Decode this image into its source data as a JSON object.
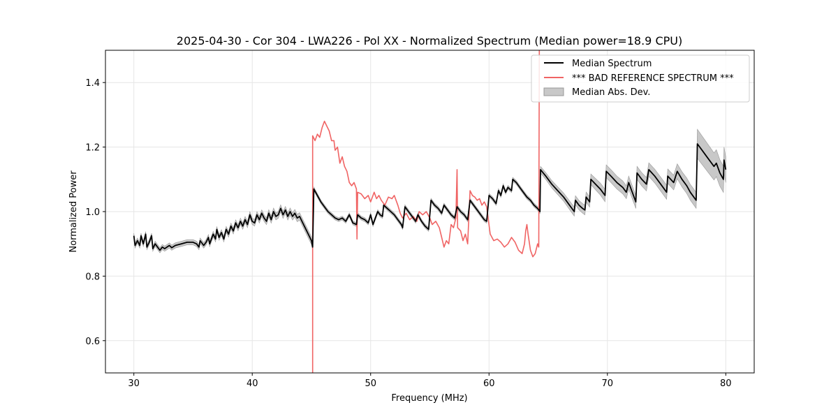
{
  "chart_data": {
    "type": "line",
    "title": "2025-04-30 - Cor 304 - LWA226 - Pol XX - Normalized Spectrum (Median power=18.9 CPU)",
    "xlabel": "Frequency (MHz)",
    "ylabel": "Normalized Power",
    "xlim": [
      27.6,
      82.4
    ],
    "ylim": [
      0.5,
      1.5
    ],
    "xticks": [
      30,
      40,
      50,
      60,
      70,
      80
    ],
    "yticks": [
      0.6,
      0.8,
      1.0,
      1.2,
      1.4
    ],
    "grid": true,
    "legend_position": "top-right",
    "series": [
      {
        "name": "Median Spectrum",
        "color": "#000000",
        "points": [
          [
            30.0,
            0.925
          ],
          [
            30.1,
            0.895
          ],
          [
            30.3,
            0.91
          ],
          [
            30.5,
            0.895
          ],
          [
            30.6,
            0.925
          ],
          [
            30.8,
            0.9
          ],
          [
            31.0,
            0.93
          ],
          [
            31.1,
            0.89
          ],
          [
            31.3,
            0.905
          ],
          [
            31.5,
            0.925
          ],
          [
            31.6,
            0.885
          ],
          [
            31.8,
            0.9
          ],
          [
            32.0,
            0.89
          ],
          [
            32.2,
            0.88
          ],
          [
            32.4,
            0.89
          ],
          [
            32.6,
            0.885
          ],
          [
            32.8,
            0.89
          ],
          [
            33.0,
            0.895
          ],
          [
            33.2,
            0.888
          ],
          [
            33.5,
            0.895
          ],
          [
            34.0,
            0.9
          ],
          [
            34.5,
            0.905
          ],
          [
            35.0,
            0.905
          ],
          [
            35.3,
            0.9
          ],
          [
            35.5,
            0.89
          ],
          [
            35.6,
            0.91
          ],
          [
            35.9,
            0.895
          ],
          [
            36.1,
            0.905
          ],
          [
            36.3,
            0.92
          ],
          [
            36.4,
            0.9
          ],
          [
            36.7,
            0.93
          ],
          [
            36.9,
            0.915
          ],
          [
            37.0,
            0.945
          ],
          [
            37.2,
            0.92
          ],
          [
            37.4,
            0.935
          ],
          [
            37.6,
            0.915
          ],
          [
            37.8,
            0.945
          ],
          [
            38.0,
            0.93
          ],
          [
            38.2,
            0.955
          ],
          [
            38.4,
            0.94
          ],
          [
            38.6,
            0.965
          ],
          [
            38.8,
            0.95
          ],
          [
            39.0,
            0.97
          ],
          [
            39.2,
            0.955
          ],
          [
            39.4,
            0.975
          ],
          [
            39.6,
            0.96
          ],
          [
            39.8,
            0.99
          ],
          [
            40.0,
            0.97
          ],
          [
            40.2,
            0.965
          ],
          [
            40.4,
            0.99
          ],
          [
            40.6,
            0.975
          ],
          [
            40.8,
            0.995
          ],
          [
            41.0,
            0.98
          ],
          [
            41.2,
            0.97
          ],
          [
            41.4,
            0.995
          ],
          [
            41.6,
            0.975
          ],
          [
            41.8,
            1.0
          ],
          [
            42.0,
            0.985
          ],
          [
            42.2,
            0.99
          ],
          [
            42.4,
            1.01
          ],
          [
            42.6,
            0.99
          ],
          [
            42.8,
            1.005
          ],
          [
            43.0,
            0.985
          ],
          [
            43.2,
            1.0
          ],
          [
            43.4,
            0.985
          ],
          [
            43.6,
            0.995
          ],
          [
            43.8,
            0.98
          ],
          [
            44.0,
            0.985
          ],
          [
            44.2,
            0.97
          ],
          [
            44.4,
            0.955
          ],
          [
            44.6,
            0.94
          ],
          [
            44.8,
            0.925
          ],
          [
            45.0,
            0.91
          ],
          [
            45.1,
            0.89
          ],
          [
            45.2,
            1.07
          ],
          [
            45.5,
            1.05
          ],
          [
            45.8,
            1.03
          ],
          [
            46.1,
            1.015
          ],
          [
            46.4,
            1.0
          ],
          [
            46.7,
            0.99
          ],
          [
            47.0,
            0.98
          ],
          [
            47.3,
            0.975
          ],
          [
            47.6,
            0.98
          ],
          [
            47.9,
            0.97
          ],
          [
            48.2,
            0.99
          ],
          [
            48.5,
            0.965
          ],
          [
            48.8,
            0.96
          ],
          [
            48.9,
            0.99
          ],
          [
            49.2,
            0.98
          ],
          [
            49.5,
            0.975
          ],
          [
            49.8,
            0.965
          ],
          [
            50.0,
            0.99
          ],
          [
            50.2,
            0.96
          ],
          [
            50.4,
            0.98
          ],
          [
            50.6,
            1.0
          ],
          [
            50.8,
            0.99
          ],
          [
            51.0,
            0.985
          ],
          [
            51.1,
            1.02
          ],
          [
            51.4,
            1.01
          ],
          [
            51.7,
            1.0
          ],
          [
            52.0,
            0.99
          ],
          [
            52.3,
            0.975
          ],
          [
            52.6,
            0.96
          ],
          [
            52.7,
            0.95
          ],
          [
            52.9,
            1.015
          ],
          [
            53.2,
            1.0
          ],
          [
            53.5,
            0.985
          ],
          [
            53.8,
            0.97
          ],
          [
            54.0,
            0.99
          ],
          [
            54.3,
            0.97
          ],
          [
            54.6,
            0.955
          ],
          [
            54.9,
            0.945
          ],
          [
            55.1,
            1.035
          ],
          [
            55.4,
            1.02
          ],
          [
            55.7,
            1.01
          ],
          [
            56.0,
            0.995
          ],
          [
            56.2,
            1.02
          ],
          [
            56.5,
            1.005
          ],
          [
            56.8,
            0.99
          ],
          [
            57.1,
            0.98
          ],
          [
            57.3,
            1.015
          ],
          [
            57.6,
            1.0
          ],
          [
            57.9,
            0.99
          ],
          [
            58.2,
            0.975
          ],
          [
            58.4,
            1.035
          ],
          [
            58.7,
            1.02
          ],
          [
            59.0,
            1.005
          ],
          [
            59.3,
            0.99
          ],
          [
            59.6,
            0.975
          ],
          [
            59.8,
            0.97
          ],
          [
            60.0,
            1.05
          ],
          [
            60.3,
            1.04
          ],
          [
            60.6,
            1.025
          ],
          [
            60.8,
            1.065
          ],
          [
            61.0,
            1.05
          ],
          [
            61.2,
            1.08
          ],
          [
            61.4,
            1.06
          ],
          [
            61.6,
            1.075
          ],
          [
            61.9,
            1.065
          ],
          [
            62.0,
            1.1
          ],
          [
            62.3,
            1.09
          ],
          [
            62.6,
            1.075
          ],
          [
            62.9,
            1.06
          ],
          [
            63.2,
            1.045
          ],
          [
            63.5,
            1.035
          ],
          [
            63.8,
            1.02
          ],
          [
            64.1,
            1.01
          ],
          [
            64.3,
            1.0
          ],
          [
            64.35,
            1.13
          ],
          [
            64.8,
            1.11
          ],
          [
            65.3,
            1.085
          ],
          [
            65.8,
            1.065
          ],
          [
            66.3,
            1.045
          ],
          [
            66.8,
            1.02
          ],
          [
            67.0,
            1.01
          ],
          [
            67.2,
            1.0
          ],
          [
            67.3,
            1.035
          ],
          [
            67.6,
            1.02
          ],
          [
            67.9,
            1.01
          ],
          [
            68.1,
            1.005
          ],
          [
            68.2,
            1.045
          ],
          [
            68.5,
            1.03
          ],
          [
            68.6,
            1.1
          ],
          [
            69.0,
            1.085
          ],
          [
            69.4,
            1.07
          ],
          [
            69.8,
            1.05
          ],
          [
            69.9,
            1.125
          ],
          [
            70.3,
            1.11
          ],
          [
            70.8,
            1.09
          ],
          [
            71.3,
            1.075
          ],
          [
            71.6,
            1.06
          ],
          [
            71.8,
            1.09
          ],
          [
            72.1,
            1.06
          ],
          [
            72.4,
            1.03
          ],
          [
            72.5,
            1.12
          ],
          [
            72.9,
            1.1
          ],
          [
            73.3,
            1.085
          ],
          [
            73.5,
            1.13
          ],
          [
            74.0,
            1.11
          ],
          [
            74.5,
            1.085
          ],
          [
            75.0,
            1.06
          ],
          [
            75.1,
            1.11
          ],
          [
            75.6,
            1.09
          ],
          [
            75.9,
            1.125
          ],
          [
            76.3,
            1.1
          ],
          [
            76.7,
            1.08
          ],
          [
            77.0,
            1.06
          ],
          [
            77.3,
            1.045
          ],
          [
            77.5,
            1.035
          ],
          [
            77.6,
            1.21
          ],
          [
            78.0,
            1.19
          ],
          [
            78.5,
            1.165
          ],
          [
            78.8,
            1.15
          ],
          [
            79.0,
            1.14
          ],
          [
            79.2,
            1.15
          ],
          [
            79.5,
            1.12
          ],
          [
            79.8,
            1.1
          ],
          [
            79.85,
            1.16
          ],
          [
            80.0,
            1.13
          ]
        ]
      },
      {
        "name": "*** BAD REFERENCE SPECTRUM ***",
        "color": "#f06464",
        "points": [
          [
            45.1,
            0.5
          ],
          [
            45.1,
            1.235
          ],
          [
            45.3,
            1.22
          ],
          [
            45.5,
            1.24
          ],
          [
            45.7,
            1.23
          ],
          [
            45.9,
            1.26
          ],
          [
            46.1,
            1.28
          ],
          [
            46.3,
            1.265
          ],
          [
            46.5,
            1.25
          ],
          [
            46.7,
            1.22
          ],
          [
            46.9,
            1.22
          ],
          [
            47.0,
            1.19
          ],
          [
            47.2,
            1.2
          ],
          [
            47.4,
            1.15
          ],
          [
            47.6,
            1.17
          ],
          [
            47.8,
            1.14
          ],
          [
            48.0,
            1.125
          ],
          [
            48.2,
            1.09
          ],
          [
            48.4,
            1.08
          ],
          [
            48.6,
            1.09
          ],
          [
            48.8,
            1.07
          ],
          [
            48.85,
            0.915
          ],
          [
            48.9,
            1.06
          ],
          [
            49.2,
            1.055
          ],
          [
            49.5,
            1.04
          ],
          [
            49.8,
            1.05
          ],
          [
            50.0,
            1.03
          ],
          [
            50.3,
            1.06
          ],
          [
            50.5,
            1.04
          ],
          [
            50.7,
            1.05
          ],
          [
            50.9,
            1.035
          ],
          [
            51.2,
            1.02
          ],
          [
            51.5,
            1.045
          ],
          [
            51.8,
            1.04
          ],
          [
            52.0,
            1.05
          ],
          [
            52.3,
            1.02
          ],
          [
            52.5,
            0.995
          ],
          [
            52.7,
            0.98
          ],
          [
            53.0,
            0.995
          ],
          [
            53.3,
            0.975
          ],
          [
            53.6,
            0.985
          ],
          [
            53.9,
            0.97
          ],
          [
            54.1,
            1.0
          ],
          [
            54.4,
            0.99
          ],
          [
            54.7,
            1.0
          ],
          [
            55.0,
            0.98
          ],
          [
            55.2,
            0.96
          ],
          [
            55.5,
            0.97
          ],
          [
            55.8,
            0.95
          ],
          [
            56.0,
            0.92
          ],
          [
            56.2,
            0.89
          ],
          [
            56.4,
            0.91
          ],
          [
            56.6,
            0.9
          ],
          [
            56.8,
            0.96
          ],
          [
            57.0,
            0.95
          ],
          [
            57.2,
            0.98
          ],
          [
            57.3,
            1.13
          ],
          [
            57.35,
            0.95
          ],
          [
            57.6,
            0.94
          ],
          [
            57.8,
            0.91
          ],
          [
            58.0,
            0.93
          ],
          [
            58.2,
            0.9
          ],
          [
            58.4,
            1.065
          ],
          [
            58.6,
            1.05
          ],
          [
            58.8,
            1.045
          ],
          [
            59.0,
            1.035
          ],
          [
            59.2,
            1.04
          ],
          [
            59.4,
            1.02
          ],
          [
            59.6,
            1.03
          ],
          [
            59.8,
            1.015
          ],
          [
            60.1,
            0.93
          ],
          [
            60.4,
            0.91
          ],
          [
            60.7,
            0.915
          ],
          [
            61.0,
            0.905
          ],
          [
            61.3,
            0.89
          ],
          [
            61.6,
            0.9
          ],
          [
            61.9,
            0.92
          ],
          [
            62.2,
            0.905
          ],
          [
            62.5,
            0.88
          ],
          [
            62.8,
            0.87
          ],
          [
            63.0,
            0.9
          ],
          [
            63.1,
            0.94
          ],
          [
            63.2,
            0.96
          ],
          [
            63.3,
            0.93
          ],
          [
            63.5,
            0.88
          ],
          [
            63.7,
            0.86
          ],
          [
            63.9,
            0.87
          ],
          [
            64.1,
            0.9
          ],
          [
            64.2,
            0.89
          ],
          [
            64.25,
            1.5
          ]
        ]
      }
    ],
    "median_abs_dev": {
      "name": "Median Abs. Dev.",
      "color": "#c8c8c8",
      "band": [
        [
          30.0,
          0.008
        ],
        [
          35.0,
          0.008
        ],
        [
          40.0,
          0.01
        ],
        [
          45.0,
          0.012
        ],
        [
          45.2,
          0.006
        ],
        [
          55.0,
          0.006
        ],
        [
          60.0,
          0.006
        ],
        [
          64.3,
          0.006
        ],
        [
          64.35,
          0.01
        ],
        [
          68.0,
          0.015
        ],
        [
          70.0,
          0.02
        ],
        [
          72.0,
          0.02
        ],
        [
          75.0,
          0.022
        ],
        [
          77.5,
          0.025
        ],
        [
          77.6,
          0.045
        ],
        [
          80.0,
          0.04
        ]
      ]
    }
  }
}
